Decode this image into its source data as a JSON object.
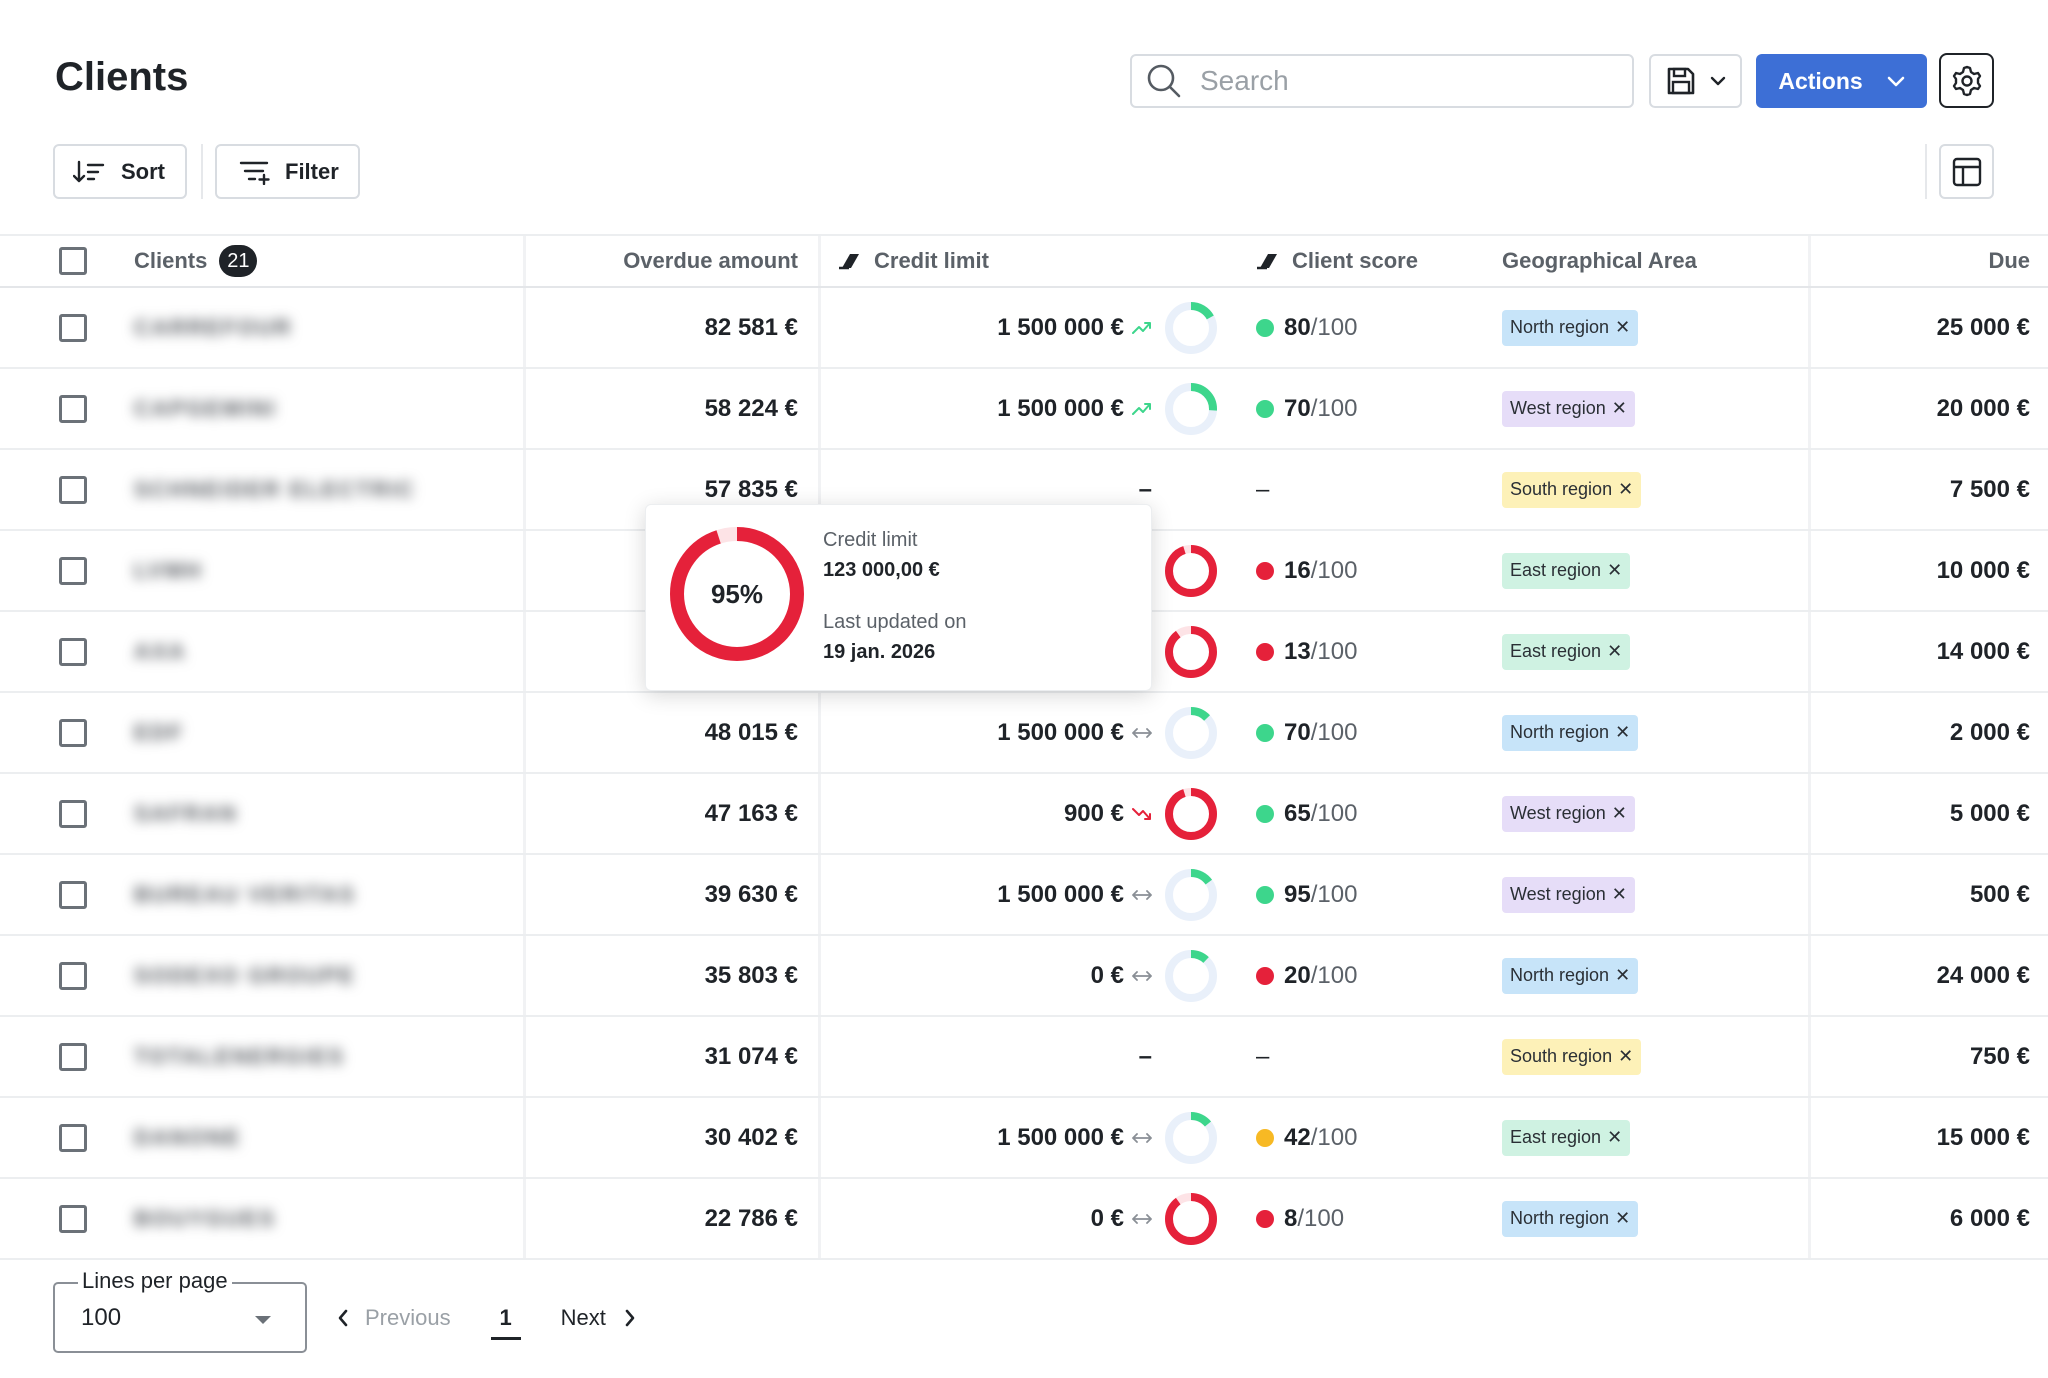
{
  "header": {
    "title": "Clients",
    "search_placeholder": "Search",
    "actions_label": "Actions"
  },
  "toolbar": {
    "sort_label": "Sort",
    "filter_label": "Filter"
  },
  "columns": {
    "clients": "Clients",
    "clients_count": "21",
    "overdue": "Overdue amount",
    "credit": "Credit limit",
    "score": "Client score",
    "geo": "Geographical Area",
    "due": "Due"
  },
  "colors": {
    "primary": "#3d6fd6",
    "green": "#3dd68c",
    "red": "#e5213a",
    "orange": "#f7b924",
    "north": "#c7e4f9",
    "west": "#e6ddf8",
    "south": "#fdf1b8",
    "east": "#cff2e2"
  },
  "rows": [
    {
      "client": "CARREFOUR",
      "overdue": "82 581 €",
      "credit": "1 500 000 €",
      "trend": "up",
      "ratio": 0.17,
      "score": "80",
      "score_max": "/100",
      "score_color": "green",
      "region": "North region",
      "region_key": "north",
      "due": "25 000 €"
    },
    {
      "client": "CAPGEMINI",
      "overdue": "58 224 €",
      "credit": "1 500 000 €",
      "trend": "up",
      "ratio": 0.26,
      "score": "70",
      "score_max": "/100",
      "score_color": "green",
      "region": "West region",
      "region_key": "west",
      "due": "20 000 €"
    },
    {
      "client": "SCHNEIDER ELECTRIC",
      "overdue": "57 835 €",
      "credit": "–",
      "trend": "none",
      "ratio": null,
      "score": "–",
      "score_max": "",
      "score_color": "none",
      "region": "South region",
      "region_key": "south",
      "due": "7 500 €"
    },
    {
      "client": "LVMH",
      "overdue": "",
      "credit": "",
      "trend": "none",
      "ratio": 0.95,
      "score": "16",
      "score_max": "/100",
      "score_color": "red",
      "region": "East region",
      "region_key": "east",
      "due": "10 000 €"
    },
    {
      "client": "AXA",
      "overdue": "",
      "credit": "",
      "trend": "none",
      "ratio": 0.9,
      "score": "13",
      "score_max": "/100",
      "score_color": "red",
      "region": "East region",
      "region_key": "east",
      "due": "14 000 €"
    },
    {
      "client": "EDF",
      "overdue": "48 015 €",
      "credit": "1 500 000 €",
      "trend": "flat",
      "ratio": 0.13,
      "score": "70",
      "score_max": "/100",
      "score_color": "green",
      "region": "North region",
      "region_key": "north",
      "due": "2 000 €"
    },
    {
      "client": "SAFRAN",
      "overdue": "47 163 €",
      "credit": "900 €",
      "trend": "down",
      "ratio": 0.95,
      "score": "65",
      "score_max": "/100",
      "score_color": "green",
      "region": "West region",
      "region_key": "west",
      "due": "5 000 €"
    },
    {
      "client": "BUREAU VERITAS",
      "overdue": "39 630 €",
      "credit": "1 500 000 €",
      "trend": "flat",
      "ratio": 0.15,
      "score": "95",
      "score_max": "/100",
      "score_color": "green",
      "region": "West region",
      "region_key": "west",
      "due": "500 €"
    },
    {
      "client": "SODEXO GROUPE",
      "overdue": "35 803 €",
      "credit": "0 €",
      "trend": "flat",
      "ratio": 0.12,
      "score": "20",
      "score_max": "/100",
      "score_color": "red",
      "region": "North region",
      "region_key": "north",
      "due": "24 000 €"
    },
    {
      "client": "TOTALENERGIES",
      "overdue": "31 074 €",
      "credit": "–",
      "trend": "none",
      "ratio": null,
      "score": "–",
      "score_max": "",
      "score_color": "none",
      "region": "South region",
      "region_key": "south",
      "due": "750 €"
    },
    {
      "client": "DANONE",
      "overdue": "30 402 €",
      "credit": "1 500 000 €",
      "trend": "flat",
      "ratio": 0.14,
      "score": "42",
      "score_max": "/100",
      "score_color": "orange",
      "region": "East region",
      "region_key": "east",
      "due": "15 000 €"
    },
    {
      "client": "BOUYGUES",
      "overdue": "22 786 €",
      "credit": "0 €",
      "trend": "flat",
      "ratio": 0.9,
      "score": "8",
      "score_max": "/100",
      "score_color": "red",
      "region": "North region",
      "region_key": "north",
      "due": "6 000 €"
    }
  ],
  "tooltip": {
    "percent": "95%",
    "percent_value": 0.95,
    "credit_label": "Credit limit",
    "credit_value": "123 000,00 €",
    "updated_label": "Last updated on",
    "updated_value": "19 jan. 2026"
  },
  "footer": {
    "lines_label": "Lines per page",
    "lines_value": "100",
    "previous": "Previous",
    "page": "1",
    "next": "Next"
  }
}
